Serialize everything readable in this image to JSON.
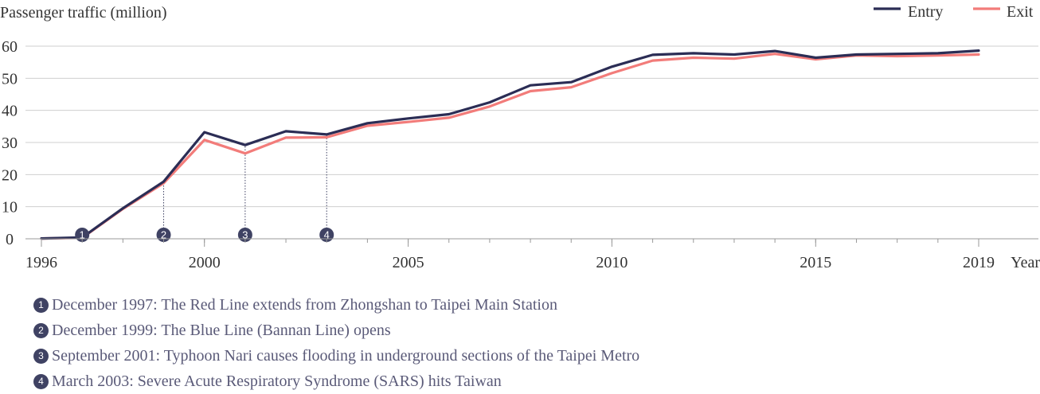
{
  "chart_data": {
    "type": "line",
    "ylabel": "Passenger traffic (million)",
    "xlabel": "Year",
    "xlim": [
      1996,
      2019
    ],
    "ylim": [
      0,
      60
    ],
    "yticks": [
      0,
      10,
      20,
      30,
      40,
      50,
      60
    ],
    "xticks": [
      {
        "value": 1996,
        "label": "1996"
      },
      {
        "value": 2000,
        "label": "2000"
      },
      {
        "value": 2005,
        "label": "2005"
      },
      {
        "value": 2010,
        "label": "2010"
      },
      {
        "value": 2015,
        "label": "2015"
      },
      {
        "value": 2019,
        "label": "2019"
      }
    ],
    "grid": true,
    "legend_position": "top-right",
    "x": [
      1996,
      1997,
      1998,
      1999,
      2000,
      2001,
      2002,
      2003,
      2004,
      2005,
      2006,
      2007,
      2008,
      2009,
      2010,
      2011,
      2012,
      2013,
      2014,
      2015,
      2016,
      2017,
      2018,
      2019
    ],
    "series": [
      {
        "name": "Entry",
        "color": "#2b2d55",
        "values": [
          0.1,
          0.4,
          9.5,
          17.8,
          33.2,
          29.2,
          33.5,
          32.5,
          36.0,
          37.5,
          38.8,
          42.5,
          47.8,
          48.8,
          53.6,
          57.3,
          57.8,
          57.4,
          58.5,
          56.4,
          57.4,
          57.6,
          57.8,
          58.6
        ]
      },
      {
        "name": "Exit",
        "color": "#f27c7a",
        "values": [
          0.1,
          0.3,
          9.3,
          17.3,
          30.8,
          26.6,
          31.5,
          31.6,
          35.2,
          36.4,
          37.7,
          41.2,
          46.0,
          47.2,
          51.6,
          55.5,
          56.4,
          56.1,
          57.6,
          55.9,
          57.1,
          56.9,
          57.1,
          57.4
        ]
      }
    ],
    "events": [
      {
        "marker": "1",
        "x": 1997,
        "guide_to": null
      },
      {
        "marker": "2",
        "x": 1999,
        "guide_to": 17.8
      },
      {
        "marker": "3",
        "x": 2001,
        "guide_to": 29.2
      },
      {
        "marker": "4",
        "x": 2003,
        "guide_to": 32.5
      }
    ]
  },
  "notes": [
    {
      "marker": "❶",
      "text": "December 1997: The Red Line extends from Zhongshan to Taipei Main Station"
    },
    {
      "marker": "❷",
      "text": "December 1999: The Blue Line (Bannan Line) opens"
    },
    {
      "marker": "❸",
      "text": "September 2001: Typhoon Nari causes flooding in underground sections of the Taipei Metro"
    },
    {
      "marker": "❹",
      "text": "March 2003: Severe Acute Respiratory Syndrome (SARS) hits Taiwan"
    }
  ]
}
